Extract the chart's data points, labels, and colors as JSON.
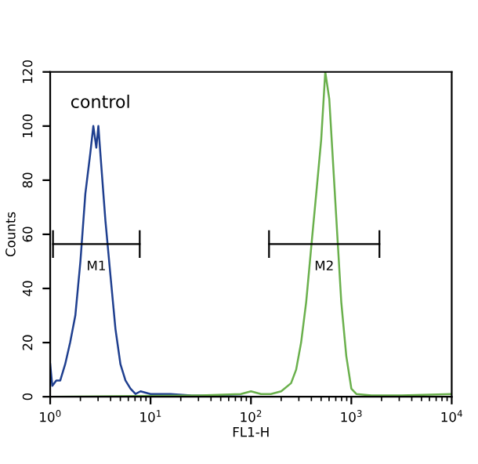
{
  "chart_data": {
    "type": "line",
    "xlabel": "FL1-H",
    "ylabel": "Counts",
    "log": "x",
    "xlim": [
      1,
      10000
    ],
    "ylim": [
      0,
      120
    ],
    "xticks": [
      {
        "value": 1,
        "label": "10$^{0}$"
      },
      {
        "value": 10,
        "label": "10$^{1}$"
      },
      {
        "value": 100,
        "label": "10$^{2}$"
      },
      {
        "value": 1000,
        "label": "10$^{3}$"
      },
      {
        "value": 10000,
        "label": "10$^{4}$"
      }
    ],
    "yticks": [
      0,
      20,
      40,
      60,
      80,
      100,
      120
    ],
    "grid": false,
    "legend": false,
    "series": [
      {
        "color": "#1f3f8f",
        "x": [
          1,
          1.05,
          1.15,
          1.26,
          1.41,
          1.58,
          1.78,
          2.0,
          2.24,
          2.51,
          2.69,
          2.88,
          3.02,
          3.16,
          3.55,
          3.98,
          4.47,
          5.01,
          5.62,
          6.31,
          7.08,
          7.94,
          10,
          15.8,
          25.1,
          39.8,
          100
        ],
        "values": [
          12,
          4,
          6,
          6,
          12,
          20,
          30,
          50,
          75,
          90,
          100,
          92,
          100,
          90,
          65,
          45,
          25,
          12,
          6,
          3,
          1,
          2,
          1,
          1,
          0.5,
          0.3,
          0
        ]
      },
      {
        "color": "#6ab04c",
        "x": [
          1,
          31.6,
          79.4,
          100,
          126,
          158,
          200,
          251,
          282,
          316,
          355,
          398,
          447,
          501,
          550,
          603,
          661,
          724,
          794,
          891,
          1000,
          1122,
          1585,
          3162,
          10000
        ],
        "values": [
          0,
          0.5,
          1,
          2,
          1,
          1,
          2,
          5,
          10,
          20,
          35,
          55,
          75,
          95,
          120,
          110,
          85,
          60,
          35,
          15,
          3,
          1,
          0.5,
          0.5,
          1
        ]
      }
    ],
    "annotations": [
      "control",
      "M1",
      "M2"
    ]
  }
}
